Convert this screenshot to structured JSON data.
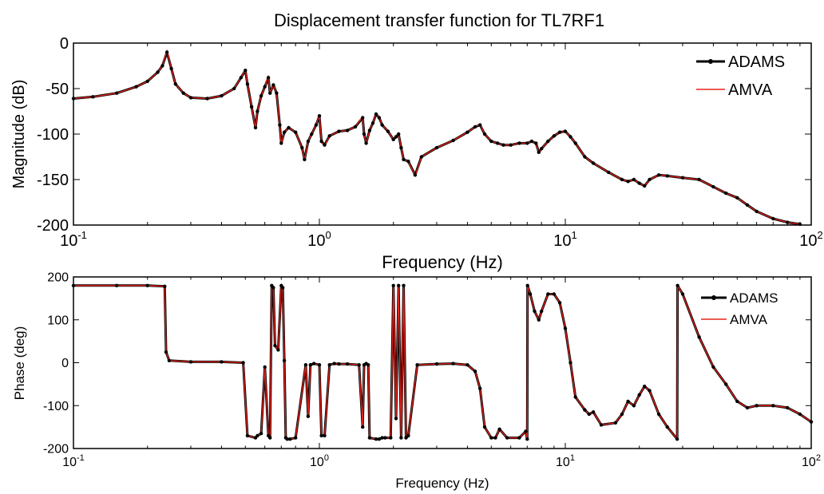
{
  "title": "Displacement transfer function for TL7RF1",
  "colors": {
    "adams": "#000000",
    "amva": "#e8231c",
    "axes": "#000000",
    "background": "#ffffff"
  },
  "chart_data": [
    {
      "type": "line",
      "title": "Displacement transfer function for TL7RF1",
      "xlabel": "Frequency (Hz)",
      "ylabel": "Magnitude (dB)",
      "xscale": "log",
      "xlim": [
        0.1,
        100
      ],
      "ylim": [
        -200,
        0
      ],
      "xticks": [
        {
          "base": "10",
          "exp": "-1"
        },
        {
          "base": "10",
          "exp": "0"
        },
        {
          "base": "10",
          "exp": "1"
        },
        {
          "base": "10",
          "exp": "2"
        }
      ],
      "yticks": [
        "-200",
        "-150",
        "-100",
        "-50",
        "0"
      ],
      "grid": false,
      "legend_position": "top-right",
      "legend": [
        "ADAMS",
        "AMVA"
      ],
      "series": [
        {
          "name": "ADAMS",
          "marker": "dot",
          "x": [
            0.1,
            0.12,
            0.15,
            0.18,
            0.2,
            0.22,
            0.23,
            0.24,
            0.25,
            0.26,
            0.28,
            0.3,
            0.35,
            0.4,
            0.45,
            0.48,
            0.5,
            0.51,
            0.53,
            0.55,
            0.56,
            0.58,
            0.6,
            0.62,
            0.63,
            0.65,
            0.67,
            0.69,
            0.7,
            0.72,
            0.75,
            0.8,
            0.85,
            0.87,
            0.9,
            0.93,
            0.97,
            1.0,
            1.02,
            1.05,
            1.1,
            1.2,
            1.3,
            1.4,
            1.5,
            1.52,
            1.55,
            1.6,
            1.65,
            1.7,
            1.75,
            1.8,
            1.9,
            2.0,
            2.05,
            2.1,
            2.15,
            2.2,
            2.3,
            2.45,
            2.6,
            3.0,
            3.5,
            4.0,
            4.3,
            4.5,
            4.7,
            5.0,
            5.3,
            5.6,
            6.0,
            6.5,
            7.0,
            7.3,
            7.6,
            7.8,
            8.0,
            8.5,
            9.0,
            9.5,
            10.0,
            10.5,
            11.0,
            12.0,
            13.0,
            15.0,
            17.0,
            18.0,
            19.0,
            20.0,
            21.0,
            22.0,
            24.0,
            26.0,
            30.0,
            35.0,
            40.0,
            45.0,
            50.0,
            55.0,
            60.0,
            70.0,
            80.0,
            90.0
          ],
          "y": [
            -61,
            -59,
            -55,
            -48,
            -42,
            -32,
            -25,
            -10,
            -28,
            -45,
            -55,
            -60,
            -61,
            -58,
            -50,
            -38,
            -30,
            -45,
            -70,
            -93,
            -75,
            -58,
            -48,
            -38,
            -55,
            -46,
            -55,
            -90,
            -110,
            -98,
            -93,
            -98,
            -115,
            -128,
            -108,
            -100,
            -90,
            -80,
            -108,
            -112,
            -102,
            -97,
            -96,
            -92,
            -82,
            -100,
            -110,
            -96,
            -88,
            -78,
            -82,
            -90,
            -97,
            -106,
            -103,
            -100,
            -115,
            -128,
            -130,
            -145,
            -125,
            -115,
            -107,
            -98,
            -92,
            -90,
            -100,
            -108,
            -110,
            -112,
            -112,
            -110,
            -110,
            -108,
            -110,
            -120,
            -116,
            -108,
            -102,
            -98,
            -97,
            -103,
            -110,
            -125,
            -132,
            -142,
            -150,
            -152,
            -150,
            -154,
            -157,
            -150,
            -145,
            -146,
            -148,
            -150,
            -158,
            -165,
            -170,
            -178,
            -185,
            -193,
            -197,
            -199
          ]
        },
        {
          "name": "AMVA",
          "x": [
            0.1,
            0.12,
            0.15,
            0.18,
            0.2,
            0.22,
            0.23,
            0.24,
            0.25,
            0.26,
            0.28,
            0.3,
            0.35,
            0.4,
            0.45,
            0.48,
            0.5,
            0.51,
            0.53,
            0.55,
            0.56,
            0.58,
            0.6,
            0.62,
            0.63,
            0.65,
            0.67,
            0.69,
            0.7,
            0.72,
            0.75,
            0.8,
            0.85,
            0.87,
            0.9,
            0.93,
            0.97,
            1.0,
            1.02,
            1.05,
            1.1,
            1.2,
            1.3,
            1.4,
            1.5,
            1.52,
            1.55,
            1.6,
            1.65,
            1.7,
            1.75,
            1.8,
            1.9,
            2.0,
            2.05,
            2.1,
            2.15,
            2.2,
            2.3,
            2.45,
            2.6,
            3.0,
            3.5,
            4.0,
            4.3,
            4.5,
            4.7,
            5.0,
            5.3,
            5.6,
            6.0,
            6.5,
            7.0,
            7.3,
            7.6,
            7.8,
            8.0,
            8.5,
            9.0,
            9.5,
            10.0,
            10.5,
            11.0,
            12.0,
            13.0,
            15.0,
            17.0,
            18.0,
            19.0,
            20.0,
            21.0,
            22.0,
            24.0,
            26.0,
            30.0,
            35.0,
            40.0,
            45.0,
            50.0,
            55.0,
            60.0,
            70.0,
            80.0,
            90.0
          ],
          "y": [
            -61,
            -59,
            -55,
            -48,
            -42,
            -32,
            -25,
            -8,
            -28,
            -45,
            -55,
            -60,
            -61,
            -58,
            -50,
            -38,
            -29,
            -45,
            -70,
            -94,
            -75,
            -58,
            -48,
            -36,
            -55,
            -46,
            -55,
            -90,
            -111,
            -98,
            -93,
            -98,
            -115,
            -129,
            -108,
            -100,
            -90,
            -79,
            -108,
            -113,
            -102,
            -97,
            -96,
            -92,
            -81,
            -100,
            -111,
            -96,
            -88,
            -77,
            -82,
            -90,
            -97,
            -106,
            -103,
            -100,
            -115,
            -128,
            -130,
            -146,
            -125,
            -115,
            -107,
            -98,
            -92,
            -89,
            -100,
            -108,
            -110,
            -112,
            -112,
            -110,
            -110,
            -108,
            -110,
            -121,
            -116,
            -108,
            -102,
            -98,
            -97,
            -103,
            -110,
            -125,
            -132,
            -142,
            -150,
            -152,
            -150,
            -154,
            -157,
            -150,
            -145,
            -146,
            -148,
            -150,
            -158,
            -165,
            -170,
            -178,
            -185,
            -193,
            -197,
            -199
          ]
        }
      ]
    },
    {
      "type": "line",
      "title": "",
      "xlabel": "Frequency (Hz)",
      "ylabel": "Phase (deg)",
      "xscale": "log",
      "xlim": [
        0.1,
        100
      ],
      "ylim": [
        -200,
        200
      ],
      "xticks": [
        {
          "base": "10",
          "exp": "-1"
        },
        {
          "base": "10",
          "exp": "0"
        },
        {
          "base": "10",
          "exp": "1"
        },
        {
          "base": "10",
          "exp": "2"
        }
      ],
      "yticks": [
        "-200",
        "-100",
        "0",
        "100",
        "200"
      ],
      "grid": false,
      "legend_position": "top-right",
      "legend": [
        "ADAMS",
        "AMVA"
      ],
      "series": [
        {
          "name": "ADAMS",
          "marker": "dot",
          "x": [
            0.1,
            0.15,
            0.2,
            0.235,
            0.238,
            0.245,
            0.3,
            0.4,
            0.49,
            0.51,
            0.55,
            0.56,
            0.58,
            0.6,
            0.62,
            0.63,
            0.64,
            0.65,
            0.66,
            0.68,
            0.7,
            0.71,
            0.72,
            0.73,
            0.74,
            0.76,
            0.8,
            0.88,
            0.9,
            0.92,
            0.95,
            1.0,
            1.02,
            1.05,
            1.1,
            1.15,
            1.2,
            1.3,
            1.45,
            1.5,
            1.52,
            1.55,
            1.58,
            1.6,
            1.7,
            1.75,
            1.8,
            1.85,
            1.95,
            2.0,
            2.05,
            2.1,
            2.15,
            2.2,
            2.25,
            2.3,
            2.5,
            3.0,
            3.5,
            4.0,
            4.3,
            4.5,
            4.7,
            5.0,
            5.2,
            5.4,
            5.8,
            6.5,
            6.9,
            7.0,
            7.02,
            7.2,
            7.5,
            7.8,
            8.0,
            8.5,
            9.0,
            9.5,
            10.0,
            10.5,
            11.0,
            12.0,
            12.5,
            13.0,
            14.0,
            16.0,
            17.0,
            18.0,
            19.0,
            20.0,
            21.0,
            22.0,
            24.0,
            26.0,
            28.5,
            28.6,
            30.0,
            35.0,
            40.0,
            45.0,
            50.0,
            55.0,
            60.0,
            70.0,
            80.0,
            90.0,
            100.0
          ],
          "y": [
            180,
            180,
            180,
            178,
            25,
            5,
            2,
            2,
            0,
            -170,
            -175,
            -170,
            -165,
            -10,
            -170,
            -175,
            180,
            175,
            40,
            30,
            180,
            175,
            5,
            -175,
            -178,
            -178,
            -175,
            -5,
            -125,
            -5,
            -2,
            -5,
            -170,
            -170,
            -5,
            -2,
            -3,
            -3,
            -5,
            -150,
            -5,
            -2,
            -5,
            -175,
            -178,
            -178,
            -175,
            -175,
            -175,
            180,
            -130,
            180,
            -175,
            180,
            -175,
            -170,
            -5,
            -3,
            -2,
            -5,
            -20,
            -60,
            -150,
            -175,
            -175,
            -155,
            -175,
            -175,
            -160,
            -178,
            180,
            160,
            120,
            100,
            120,
            160,
            160,
            140,
            80,
            0,
            -80,
            -110,
            -120,
            -115,
            -145,
            -140,
            -120,
            -90,
            -100,
            -75,
            -55,
            -65,
            -120,
            -150,
            -178,
            180,
            160,
            60,
            -10,
            -50,
            -90,
            -105,
            -100,
            -100,
            -105,
            -120,
            -138
          ]
        },
        {
          "name": "AMVA",
          "x": [
            0.1,
            0.15,
            0.2,
            0.235,
            0.238,
            0.245,
            0.3,
            0.4,
            0.49,
            0.51,
            0.55,
            0.56,
            0.58,
            0.6,
            0.62,
            0.63,
            0.64,
            0.65,
            0.66,
            0.68,
            0.7,
            0.71,
            0.72,
            0.73,
            0.74,
            0.76,
            0.8,
            0.88,
            0.9,
            0.92,
            0.95,
            1.0,
            1.02,
            1.05,
            1.1,
            1.15,
            1.2,
            1.3,
            1.45,
            1.5,
            1.52,
            1.55,
            1.58,
            1.6,
            1.7,
            1.75,
            1.8,
            1.85,
            1.95,
            2.0,
            2.05,
            2.1,
            2.15,
            2.2,
            2.25,
            2.3,
            2.5,
            3.0,
            3.5,
            4.0,
            4.3,
            4.5,
            4.7,
            5.0,
            5.2,
            5.4,
            5.8,
            6.5,
            6.9,
            7.0,
            7.02,
            7.2,
            7.5,
            7.8,
            8.0,
            8.5,
            9.0,
            9.5,
            10.0,
            10.5,
            11.0,
            12.0,
            12.5,
            13.0,
            14.0,
            16.0,
            17.0,
            18.0,
            19.0,
            20.0,
            21.0,
            22.0,
            24.0,
            26.0,
            28.5,
            28.6,
            30.0,
            35.0,
            40.0,
            45.0,
            50.0,
            55.0,
            60.0,
            70.0,
            80.0,
            90.0,
            100.0
          ],
          "y": [
            180,
            180,
            180,
            178,
            25,
            5,
            2,
            2,
            0,
            -170,
            -175,
            -170,
            -165,
            -10,
            -170,
            -175,
            180,
            175,
            40,
            30,
            180,
            175,
            5,
            -175,
            -178,
            -178,
            -175,
            -5,
            -125,
            -5,
            -2,
            -5,
            -170,
            -170,
            -5,
            -2,
            -3,
            -3,
            -5,
            -150,
            -5,
            -2,
            -5,
            -175,
            -178,
            -178,
            -175,
            -175,
            -175,
            180,
            -130,
            180,
            -175,
            180,
            -175,
            -170,
            -5,
            -3,
            -2,
            -5,
            -20,
            -60,
            -150,
            -175,
            -175,
            -155,
            -175,
            -175,
            -160,
            -178,
            180,
            160,
            120,
            100,
            120,
            160,
            160,
            140,
            80,
            0,
            -80,
            -110,
            -120,
            -115,
            -145,
            -140,
            -120,
            -90,
            -100,
            -75,
            -55,
            -65,
            -120,
            -150,
            -178,
            180,
            160,
            60,
            -10,
            -50,
            -90,
            -105,
            -100,
            -100,
            -105,
            -120,
            -138
          ]
        }
      ]
    }
  ]
}
